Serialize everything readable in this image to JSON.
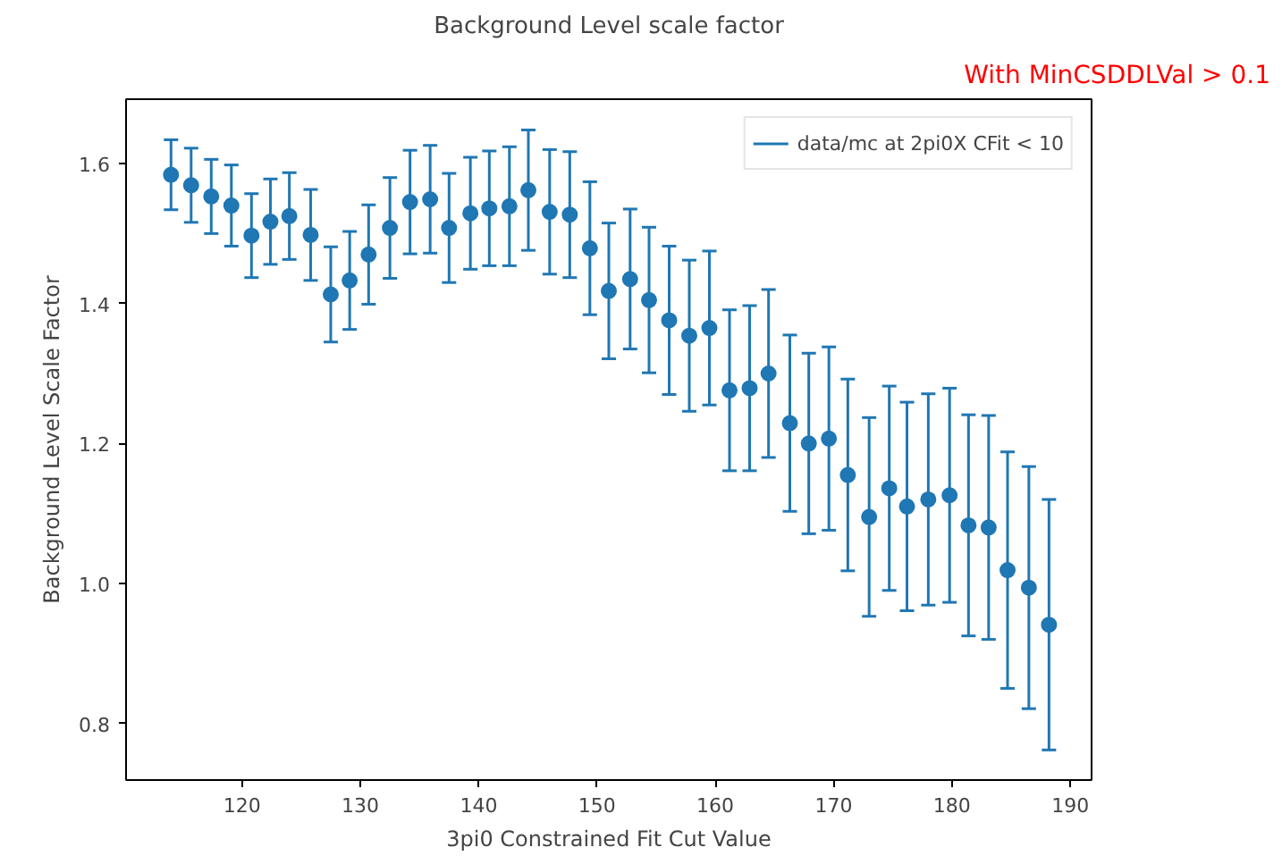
{
  "chart_data": {
    "type": "scatter",
    "title": "Background Level scale factor",
    "xlabel": "3pi0 Constrained Fit Cut Value",
    "ylabel": "Background Level Scale Factor",
    "annotations": [
      "With MinCSDDLVal > 0.1"
    ],
    "x": [
      114.0,
      115.7,
      117.4,
      119.1,
      120.8,
      122.4,
      124.0,
      125.8,
      127.5,
      129.1,
      130.7,
      132.5,
      134.2,
      135.9,
      137.5,
      139.3,
      140.9,
      142.6,
      144.2,
      146.0,
      147.7,
      149.4,
      151.0,
      152.8,
      154.4,
      156.1,
      157.8,
      159.5,
      161.2,
      162.9,
      164.5,
      166.3,
      167.9,
      169.6,
      171.2,
      173.0,
      174.7,
      176.2,
      178.0,
      179.8,
      181.4,
      183.1,
      184.7,
      186.5,
      188.2
    ],
    "series": [
      {
        "name": "data/mc at 2pi0X CFit < 10",
        "color": "#1f77b4",
        "values": [
          1.584,
          1.569,
          1.553,
          1.54,
          1.497,
          1.517,
          1.525,
          1.498,
          1.413,
          1.433,
          1.47,
          1.508,
          1.545,
          1.549,
          1.508,
          1.529,
          1.536,
          1.539,
          1.562,
          1.531,
          1.527,
          1.479,
          1.418,
          1.435,
          1.405,
          1.376,
          1.354,
          1.365,
          1.276,
          1.279,
          1.3,
          1.229,
          1.2,
          1.207,
          1.155,
          1.095,
          1.136,
          1.11,
          1.12,
          1.126,
          1.083,
          1.08,
          1.019,
          0.994,
          0.941
        ],
        "errors": [
          0.05,
          0.053,
          0.053,
          0.058,
          0.06,
          0.061,
          0.062,
          0.065,
          0.068,
          0.07,
          0.071,
          0.072,
          0.074,
          0.077,
          0.078,
          0.08,
          0.082,
          0.085,
          0.086,
          0.089,
          0.09,
          0.095,
          0.097,
          0.1,
          0.104,
          0.106,
          0.108,
          0.11,
          0.115,
          0.118,
          0.12,
          0.126,
          0.129,
          0.131,
          0.137,
          0.142,
          0.146,
          0.149,
          0.151,
          0.153,
          0.158,
          0.16,
          0.169,
          0.173,
          0.179
        ]
      }
    ],
    "xlim": [
      110.2,
      191.8
    ],
    "ylim": [
      0.719,
      1.692
    ],
    "xticks": [
      120,
      130,
      140,
      150,
      160,
      170,
      180,
      190
    ],
    "yticks": [
      {
        "value": 0.8,
        "label": "0.8"
      },
      {
        "value": 1.0,
        "label": "1.0"
      },
      {
        "value": 1.2,
        "label": "1.2"
      },
      {
        "value": 1.4,
        "label": "1.4"
      },
      {
        "value": 1.6,
        "label": "1.6"
      }
    ],
    "grid": false,
    "legend": "top right",
    "marker": "circle"
  }
}
